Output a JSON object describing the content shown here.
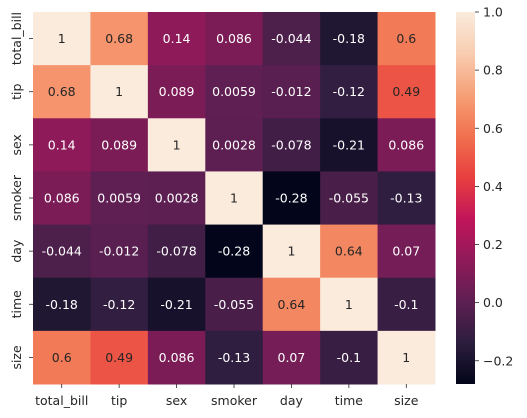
{
  "chart_data": {
    "type": "heatmap",
    "title": "",
    "xlabel": "",
    "ylabel": "",
    "x_categories": [
      "total_bill",
      "tip",
      "sex",
      "smoker",
      "day",
      "time",
      "size"
    ],
    "y_categories": [
      "total_bill",
      "tip",
      "sex",
      "smoker",
      "day",
      "time",
      "size"
    ],
    "matrix": [
      [
        1,
        0.68,
        0.14,
        0.086,
        -0.044,
        -0.18,
        0.6
      ],
      [
        0.68,
        1,
        0.089,
        0.0059,
        -0.012,
        -0.12,
        0.49
      ],
      [
        0.14,
        0.089,
        1,
        0.0028,
        -0.078,
        -0.21,
        0.086
      ],
      [
        0.086,
        0.0059,
        0.0028,
        1,
        -0.28,
        -0.055,
        -0.13
      ],
      [
        -0.044,
        -0.012,
        -0.078,
        -0.28,
        1,
        0.64,
        0.07
      ],
      [
        -0.18,
        -0.12,
        -0.21,
        -0.055,
        0.64,
        1,
        -0.1
      ],
      [
        0.6,
        0.49,
        0.086,
        -0.13,
        0.07,
        -0.1,
        1
      ]
    ],
    "cell_labels": [
      [
        "1",
        "0.68",
        "0.14",
        "0.086",
        "-0.044",
        "-0.18",
        "0.6"
      ],
      [
        "0.68",
        "1",
        "0.089",
        "0.0059",
        "-0.012",
        "-0.12",
        "0.49"
      ],
      [
        "0.14",
        "0.089",
        "1",
        "0.0028",
        "-0.078",
        "-0.21",
        "0.086"
      ],
      [
        "0.086",
        "0.0059",
        "0.0028",
        "1",
        "-0.28",
        "-0.055",
        "-0.13"
      ],
      [
        "-0.044",
        "-0.012",
        "-0.078",
        "-0.28",
        "1",
        "0.64",
        "0.07"
      ],
      [
        "-0.18",
        "-0.12",
        "-0.21",
        "-0.055",
        "0.64",
        "1",
        "-0.1"
      ],
      [
        "0.6",
        "0.49",
        "0.086",
        "-0.13",
        "0.07",
        "-0.1",
        "1"
      ]
    ],
    "colorbar": {
      "range": [
        -0.28,
        1.0
      ],
      "ticks": [
        -0.2,
        0.0,
        0.2,
        0.4,
        0.6,
        0.8,
        1.0
      ],
      "tick_labels": [
        "−0.2",
        "0.0",
        "0.2",
        "0.4",
        "0.6",
        "0.8",
        "1.0"
      ],
      "colormap": "rocket",
      "colormap_stops": [
        "#03051a",
        "#2c1e3e",
        "#5e1f52",
        "#901a5a",
        "#c2155a",
        "#e83f3f",
        "#f1714e",
        "#f6a077",
        "#f8cdb0",
        "#faebdd"
      ]
    },
    "annot_light_text": "#ffffff",
    "annot_dark_text": "#262626",
    "grid": false,
    "legend": "colorbar-right"
  }
}
